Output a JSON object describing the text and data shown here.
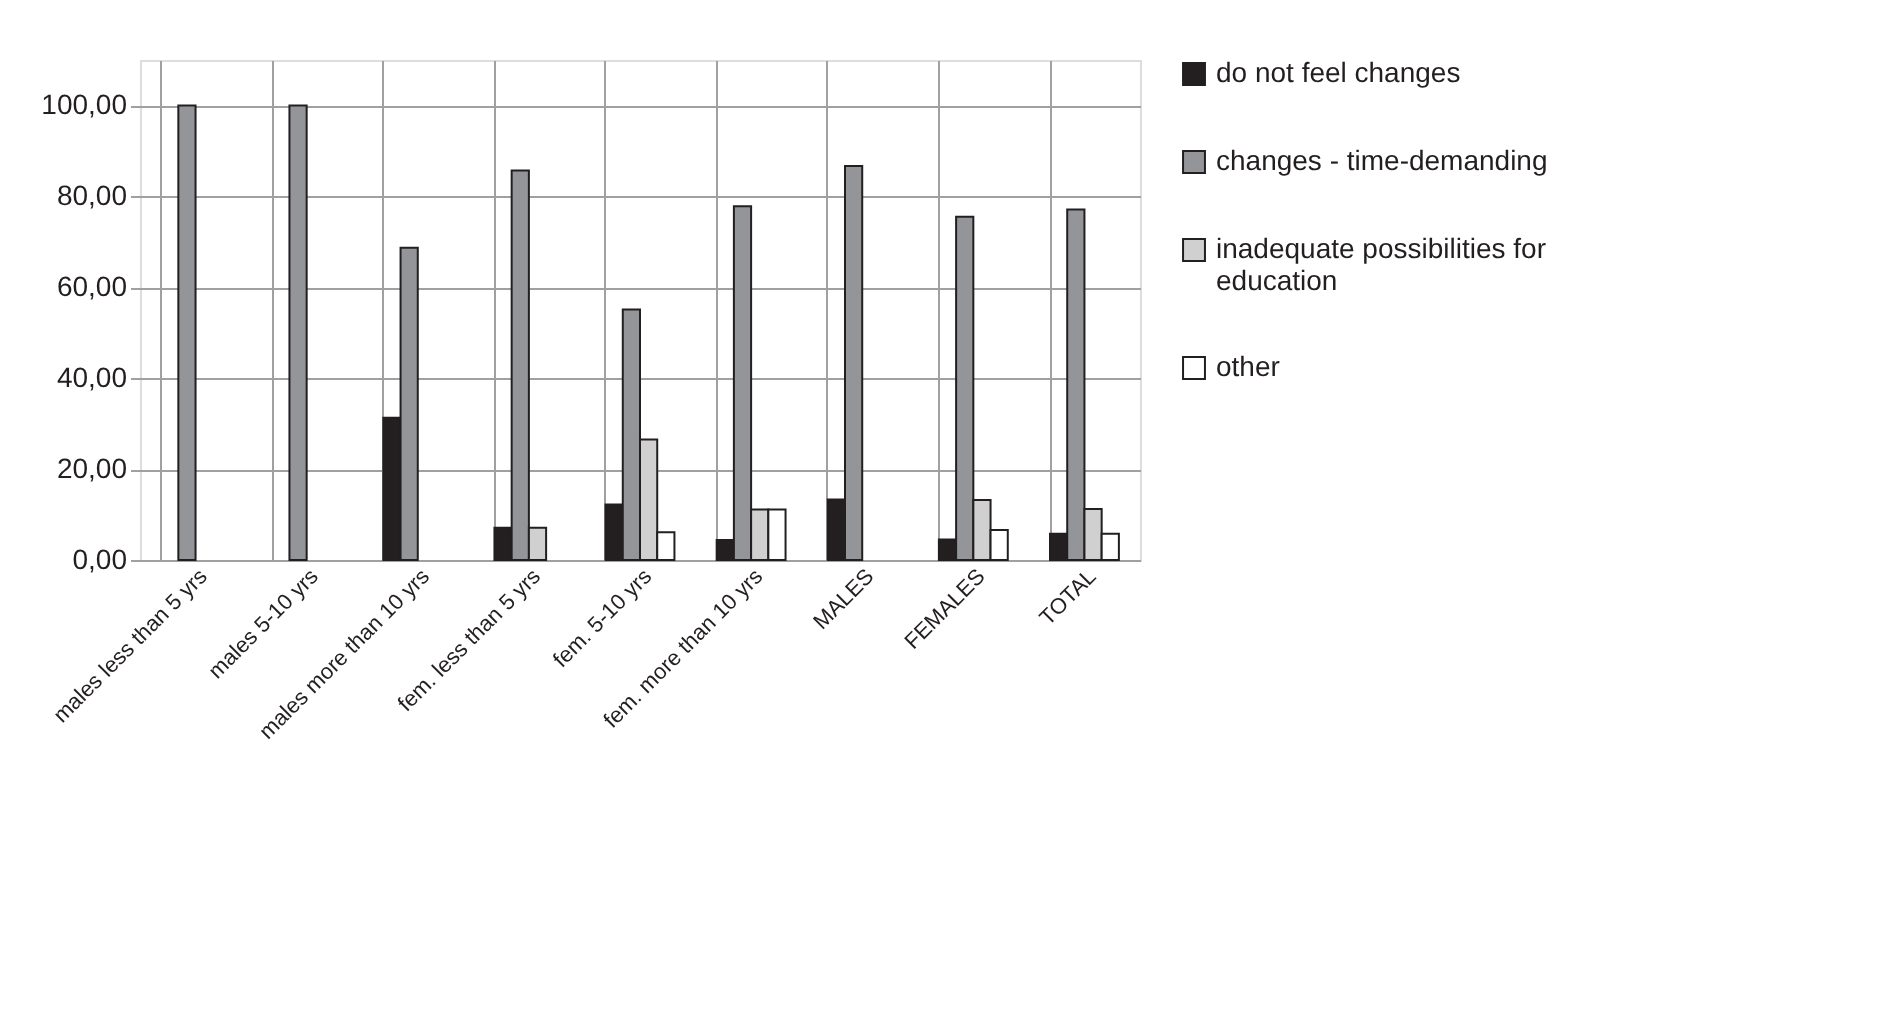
{
  "chart_data": {
    "type": "bar",
    "categories": [
      "males less than 5 yrs",
      "males 5-10 yrs",
      "males more than 10 yrs",
      "fem. less than 5 yrs",
      "fem. 5-10 yrs",
      "fem. more than 10 yrs",
      "MALES",
      "FEMALES",
      "TOTAL"
    ],
    "series": [
      {
        "name": "do not feel changes",
        "color": "#231f20",
        "values": [
          null,
          null,
          31.3,
          7.1,
          12.2,
          4.4,
          13.3,
          4.5,
          5.8
        ]
      },
      {
        "name": "changes - time-demanding",
        "color": "#939598",
        "values": [
          100,
          100,
          68.7,
          85.7,
          55.1,
          77.8,
          86.7,
          75.5,
          77.1
        ]
      },
      {
        "name": "inadequate possibilities for education",
        "color": "#d0d0d0",
        "values": [
          null,
          null,
          null,
          7.1,
          26.5,
          11.1,
          null,
          13.2,
          11.2
        ]
      },
      {
        "name": "other",
        "color": "#ffffff",
        "values": [
          null,
          null,
          null,
          null,
          6.1,
          11.1,
          null,
          6.6,
          5.8
        ]
      }
    ],
    "ylim": [
      0,
      110
    ],
    "yticks": [
      {
        "value": 0,
        "label": "0,00"
      },
      {
        "value": 20,
        "label": "20,00"
      },
      {
        "value": 40,
        "label": "40,00"
      },
      {
        "value": 60,
        "label": "60,00"
      },
      {
        "value": 80,
        "label": "80,00"
      },
      {
        "value": 100,
        "label": "100,00"
      }
    ],
    "grid": true,
    "legend": "right"
  }
}
